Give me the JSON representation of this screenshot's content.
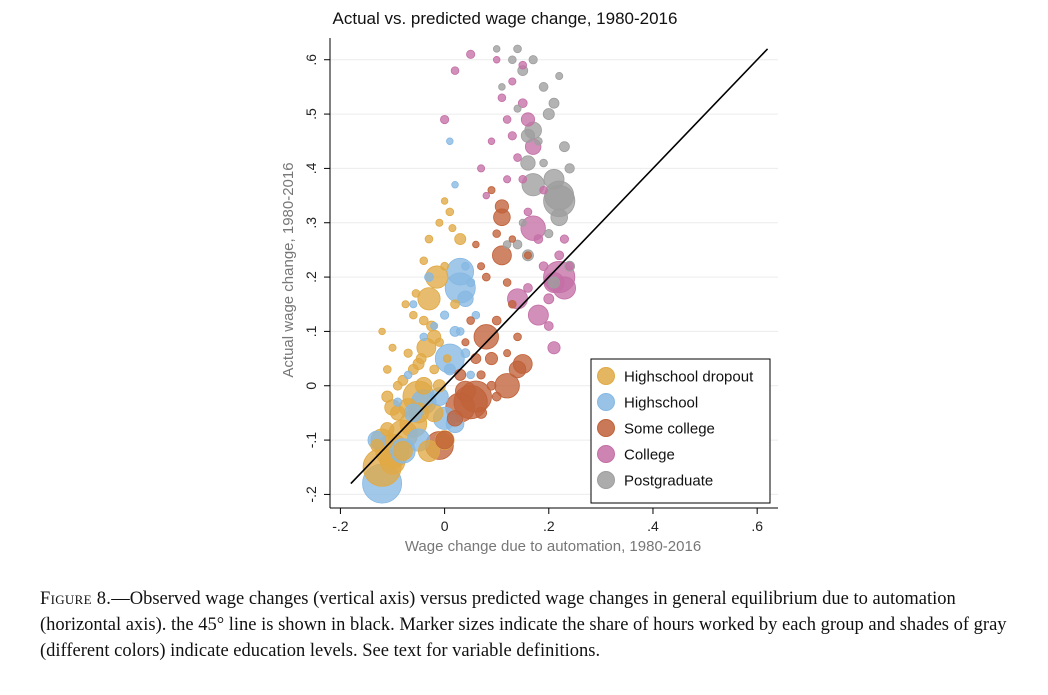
{
  "chart_data": {
    "type": "scatter",
    "title": "Actual vs. predicted wage change, 1980-2016",
    "xlabel": "Wage change due to automation, 1980-2016",
    "ylabel": "Actual wage change, 1980-2016",
    "xlim": [
      -0.22,
      0.64
    ],
    "ylim": [
      -0.225,
      0.64
    ],
    "x_ticks": [
      -0.2,
      0,
      0.2,
      0.4,
      0.6
    ],
    "x_tick_labels": [
      "-.2",
      "0",
      ".2",
      ".4",
      ".6"
    ],
    "y_ticks": [
      -0.2,
      -0.1,
      0,
      0.1,
      0.2,
      0.3,
      0.4,
      0.5,
      0.6
    ],
    "y_tick_labels": [
      "-.2",
      "-.1",
      "0",
      ".1",
      ".2",
      ".3",
      ".4",
      ".5",
      ".6"
    ],
    "grid": true,
    "legend_position": "bottom-right",
    "reference_line": {
      "label": "45 degree line",
      "from": [
        -0.18,
        -0.18
      ],
      "to": [
        0.62,
        0.62
      ],
      "color": "#000000"
    },
    "point_format": "[x, y, size]",
    "series": [
      {
        "name": "Highschool dropout",
        "color": "#E0A945",
        "points": [
          [
            -0.12,
            -0.15,
            3
          ],
          [
            -0.1,
            -0.12,
            2.6
          ],
          [
            -0.08,
            -0.09,
            2.2
          ],
          [
            -0.06,
            -0.07,
            2
          ],
          [
            -0.05,
            -0.02,
            2.4
          ],
          [
            -0.1,
            -0.04,
            1
          ],
          [
            -0.09,
            -0.05,
            0.9
          ],
          [
            -0.07,
            -0.04,
            1.2
          ],
          [
            -0.04,
            0.0,
            1.1
          ],
          [
            -0.035,
            0.07,
            1.3
          ],
          [
            -0.03,
            0.16,
            1.6
          ],
          [
            -0.015,
            0.2,
            1.6
          ],
          [
            -0.02,
            0.09,
            0.8
          ],
          [
            -0.05,
            0.04,
            0.6
          ],
          [
            -0.03,
            -0.12,
            1.5
          ],
          [
            -0.06,
            0.03,
            0.5
          ],
          [
            -0.08,
            0.01,
            0.5
          ],
          [
            -0.09,
            0.0,
            0.4
          ],
          [
            -0.11,
            -0.02,
            0.6
          ],
          [
            -0.11,
            -0.08,
            0.8
          ],
          [
            -0.13,
            -0.11,
            0.7
          ],
          [
            -0.04,
            0.12,
            0.4
          ],
          [
            -0.025,
            0.11,
            0.5
          ],
          [
            -0.01,
            0.0,
            0.7
          ],
          [
            -0.02,
            0.03,
            0.4
          ],
          [
            -0.04,
            0.23,
            0.3
          ],
          [
            -0.03,
            0.27,
            0.3
          ],
          [
            -0.01,
            0.3,
            0.25
          ],
          [
            0.0,
            0.22,
            0.3
          ],
          [
            0.02,
            0.15,
            0.4
          ],
          [
            0.03,
            0.27,
            0.6
          ],
          [
            0.01,
            0.32,
            0.3
          ],
          [
            -0.06,
            0.13,
            0.3
          ],
          [
            -0.07,
            0.06,
            0.35
          ],
          [
            -0.05,
            -0.05,
            1.4
          ],
          [
            -0.12,
            -0.1,
            1.6
          ],
          [
            -0.1,
            -0.14,
            1.8
          ],
          [
            -0.08,
            -0.12,
            1.3
          ],
          [
            0.0,
            -0.1,
            1.3
          ],
          [
            -0.02,
            -0.05,
            1.2
          ],
          [
            -0.01,
            0.08,
            0.35
          ],
          [
            -0.055,
            0.17,
            0.3
          ],
          [
            -0.075,
            0.15,
            0.25
          ],
          [
            -0.045,
            0.05,
            0.5
          ],
          [
            0.005,
            0.05,
            0.3
          ],
          [
            -0.11,
            0.03,
            0.3
          ],
          [
            -0.1,
            0.07,
            0.25
          ],
          [
            -0.12,
            0.1,
            0.2
          ],
          [
            0.0,
            0.34,
            0.2
          ],
          [
            0.015,
            0.29,
            0.25
          ]
        ]
      },
      {
        "name": "Highschool",
        "color": "#86B8E3",
        "points": [
          [
            -0.12,
            -0.18,
            3.1
          ],
          [
            -0.13,
            -0.1,
            1.2
          ],
          [
            -0.08,
            -0.12,
            1.8
          ],
          [
            -0.05,
            -0.1,
            1.6
          ],
          [
            -0.06,
            -0.05,
            1.2
          ],
          [
            -0.04,
            -0.03,
            1.8
          ],
          [
            0.01,
            0.05,
            2.2
          ],
          [
            0.03,
            0.18,
            2.3
          ],
          [
            0.03,
            0.21,
            2
          ],
          [
            0.04,
            0.16,
            1
          ],
          [
            0.02,
            0.1,
            0.5
          ],
          [
            0.01,
            0.03,
            0.6
          ],
          [
            -0.01,
            -0.02,
            1.2
          ],
          [
            0.0,
            -0.06,
            1.6
          ],
          [
            0.02,
            -0.07,
            1.2
          ],
          [
            0.04,
            0.22,
            0.3
          ],
          [
            0.05,
            0.19,
            0.35
          ],
          [
            0.06,
            0.13,
            0.3
          ],
          [
            0.04,
            0.06,
            0.4
          ],
          [
            -0.03,
            0.2,
            0.4
          ],
          [
            -0.04,
            0.09,
            0.3
          ],
          [
            -0.07,
            0.02,
            0.3
          ],
          [
            -0.09,
            -0.03,
            0.35
          ],
          [
            -0.02,
            0.11,
            0.25
          ],
          [
            0.05,
            0.02,
            0.3
          ],
          [
            0.01,
            0.45,
            0.2
          ],
          [
            0.02,
            0.37,
            0.2
          ],
          [
            -0.06,
            0.15,
            0.25
          ],
          [
            0.0,
            0.13,
            0.35
          ],
          [
            0.03,
            0.1,
            0.3
          ]
        ]
      },
      {
        "name": "Some college",
        "color": "#C0623A",
        "points": [
          [
            0.05,
            -0.03,
            2.6
          ],
          [
            0.06,
            -0.02,
            2.4
          ],
          [
            0.03,
            -0.04,
            2.2
          ],
          [
            -0.01,
            -0.11,
            2.1
          ],
          [
            0.08,
            0.09,
            1.8
          ],
          [
            0.12,
            0.0,
            1.8
          ],
          [
            0.15,
            0.04,
            1.3
          ],
          [
            0.14,
            0.03,
            1.1
          ],
          [
            0.11,
            0.24,
            1.3
          ],
          [
            0.11,
            0.31,
            1.1
          ],
          [
            0.11,
            0.33,
            0.8
          ],
          [
            0.09,
            0.05,
            0.7
          ],
          [
            0.06,
            0.05,
            0.5
          ],
          [
            0.03,
            0.02,
            0.6
          ],
          [
            0.02,
            -0.06,
            1.0
          ],
          [
            0.1,
            0.12,
            0.4
          ],
          [
            0.13,
            0.15,
            0.3
          ],
          [
            0.12,
            0.19,
            0.3
          ],
          [
            0.1,
            0.28,
            0.3
          ],
          [
            0.09,
            0.36,
            0.25
          ],
          [
            0.08,
            0.2,
            0.3
          ],
          [
            0.07,
            0.22,
            0.25
          ],
          [
            0.09,
            0.0,
            0.4
          ],
          [
            0.14,
            0.09,
            0.3
          ],
          [
            0.05,
            0.12,
            0.3
          ],
          [
            0.04,
            0.08,
            0.25
          ],
          [
            0.16,
            0.24,
            0.25
          ],
          [
            0.13,
            0.27,
            0.2
          ],
          [
            0.07,
            -0.05,
            0.6
          ],
          [
            0.1,
            -0.02,
            0.4
          ],
          [
            0.0,
            -0.1,
            1.2
          ],
          [
            0.04,
            -0.01,
            1.4
          ],
          [
            0.07,
            0.02,
            0.35
          ],
          [
            0.12,
            0.06,
            0.25
          ],
          [
            0.06,
            0.26,
            0.2
          ]
        ]
      },
      {
        "name": "College",
        "color": "#C46FA6",
        "points": [
          [
            0.22,
            0.2,
            2.4
          ],
          [
            0.23,
            0.18,
            1.6
          ],
          [
            0.21,
            0.19,
            1.4
          ],
          [
            0.17,
            0.29,
            1.8
          ],
          [
            0.14,
            0.16,
            1.4
          ],
          [
            0.18,
            0.13,
            1.4
          ],
          [
            0.17,
            0.44,
            1.0
          ],
          [
            0.16,
            0.49,
            0.8
          ],
          [
            0.15,
            0.52,
            0.4
          ],
          [
            0.21,
            0.07,
            0.7
          ],
          [
            0.2,
            0.11,
            0.4
          ],
          [
            0.19,
            0.22,
            0.4
          ],
          [
            0.18,
            0.27,
            0.4
          ],
          [
            0.16,
            0.32,
            0.3
          ],
          [
            0.15,
            0.38,
            0.3
          ],
          [
            0.14,
            0.42,
            0.3
          ],
          [
            0.13,
            0.46,
            0.35
          ],
          [
            0.12,
            0.49,
            0.3
          ],
          [
            0.11,
            0.53,
            0.3
          ],
          [
            0.13,
            0.56,
            0.25
          ],
          [
            0.15,
            0.59,
            0.3
          ],
          [
            0.1,
            0.6,
            0.2
          ],
          [
            0.05,
            0.61,
            0.35
          ],
          [
            0.02,
            0.58,
            0.3
          ],
          [
            0.0,
            0.49,
            0.35
          ],
          [
            0.09,
            0.45,
            0.2
          ],
          [
            0.07,
            0.4,
            0.25
          ],
          [
            0.22,
            0.24,
            0.4
          ],
          [
            0.23,
            0.27,
            0.35
          ],
          [
            0.24,
            0.22,
            0.3
          ],
          [
            0.2,
            0.16,
            0.5
          ],
          [
            0.16,
            0.18,
            0.4
          ],
          [
            0.19,
            0.36,
            0.3
          ],
          [
            0.08,
            0.35,
            0.2
          ],
          [
            0.12,
            0.38,
            0.25
          ]
        ]
      },
      {
        "name": "Postgraduate",
        "color": "#9E9E9E",
        "points": [
          [
            0.22,
            0.34,
            2.4
          ],
          [
            0.22,
            0.35,
            2.2
          ],
          [
            0.17,
            0.37,
            1.6
          ],
          [
            0.21,
            0.38,
            1.4
          ],
          [
            0.22,
            0.31,
            1.1
          ],
          [
            0.16,
            0.41,
            0.9
          ],
          [
            0.17,
            0.47,
            1.1
          ],
          [
            0.16,
            0.46,
            0.8
          ],
          [
            0.2,
            0.5,
            0.6
          ],
          [
            0.21,
            0.52,
            0.5
          ],
          [
            0.16,
            0.24,
            0.6
          ],
          [
            0.21,
            0.19,
            0.6
          ],
          [
            0.24,
            0.22,
            0.5
          ],
          [
            0.23,
            0.44,
            0.5
          ],
          [
            0.19,
            0.55,
            0.4
          ],
          [
            0.15,
            0.58,
            0.5
          ],
          [
            0.17,
            0.6,
            0.35
          ],
          [
            0.14,
            0.62,
            0.3
          ],
          [
            0.13,
            0.6,
            0.3
          ],
          [
            0.1,
            0.62,
            0.2
          ],
          [
            0.12,
            0.26,
            0.3
          ],
          [
            0.14,
            0.26,
            0.4
          ],
          [
            0.2,
            0.28,
            0.35
          ],
          [
            0.24,
            0.4,
            0.45
          ],
          [
            0.18,
            0.45,
            0.3
          ],
          [
            0.14,
            0.51,
            0.25
          ],
          [
            0.22,
            0.57,
            0.25
          ],
          [
            0.11,
            0.55,
            0.2
          ],
          [
            0.15,
            0.3,
            0.25
          ],
          [
            0.19,
            0.41,
            0.3
          ]
        ]
      }
    ]
  },
  "caption": {
    "label": "Figure 8.",
    "text": "—Observed wage changes (vertical axis) versus predicted wage changes in general equilibrium due to automation (horizontal axis). the 45° line is shown in black. Marker sizes indicate the share of hours worked by each group and shades of gray (different colors) indicate education levels. See text for variable definitions."
  }
}
